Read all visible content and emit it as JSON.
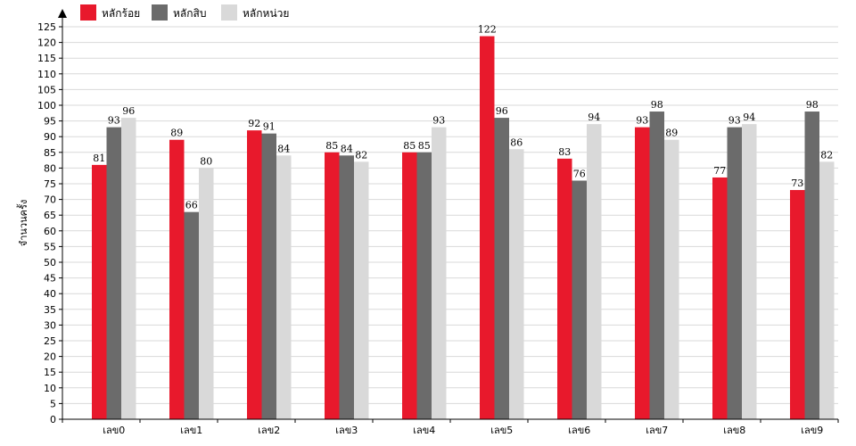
{
  "chart_data": {
    "type": "bar",
    "title": "",
    "xlabel": "",
    "ylabel": "จำนวนครั้ง",
    "ylim": [
      0,
      125
    ],
    "ytick_step": 5,
    "grid": true,
    "legend_position": "top-left",
    "categories": [
      "เลข0",
      "เลข1",
      "เลข2",
      "เลข3",
      "เลข4",
      "เลข5",
      "เลข6",
      "เลข7",
      "เลข8",
      "เลข9"
    ],
    "series": [
      {
        "name": "หลักร้อย",
        "color": "#e8192c",
        "values": [
          81,
          89,
          92,
          85,
          85,
          122,
          83,
          93,
          77,
          73
        ]
      },
      {
        "name": "หลักสิบ",
        "color": "#6b6b6b",
        "values": [
          93,
          66,
          91,
          84,
          85,
          96,
          76,
          98,
          93,
          98
        ]
      },
      {
        "name": "หลักหน่วย",
        "color": "#d9d9d9",
        "values": [
          96,
          80,
          84,
          82,
          93,
          86,
          94,
          89,
          94,
          82
        ]
      }
    ]
  }
}
